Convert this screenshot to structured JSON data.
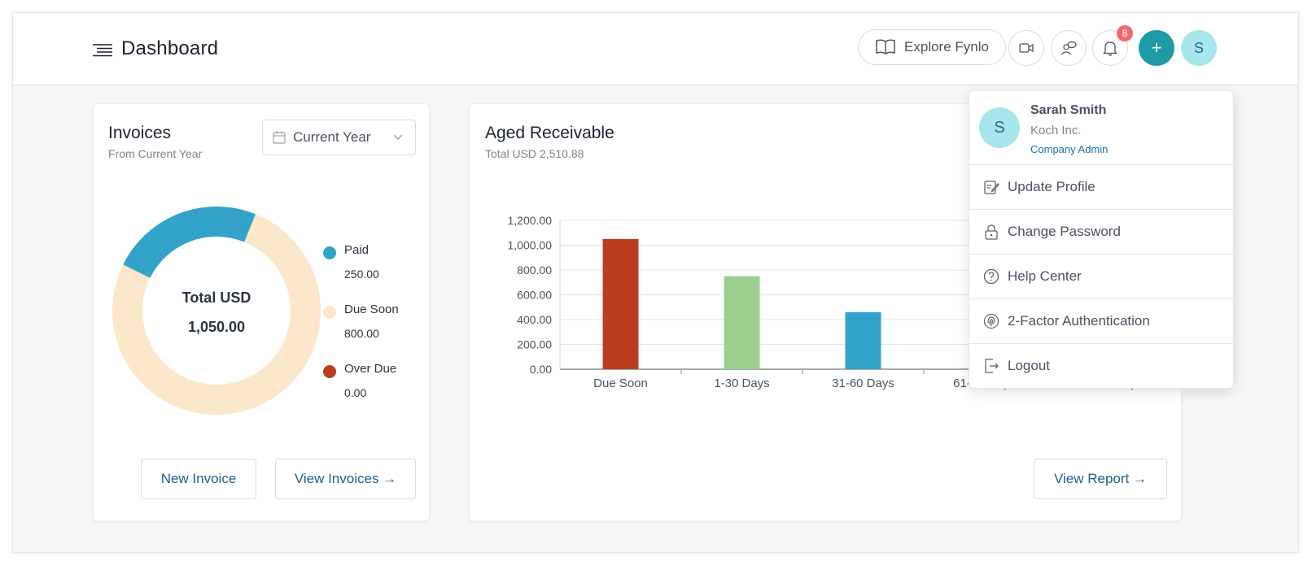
{
  "header": {
    "title": "Dashboard",
    "explore_label": "Explore Fynlo",
    "notification_count": "8",
    "avatar_initial": "S"
  },
  "invoices": {
    "title": "Invoices",
    "subtitle": "From Current Year",
    "period": "Current Year",
    "center_label": "Total USD",
    "center_value": "1,050.00",
    "legend": [
      {
        "label": "Paid",
        "value": "250.00",
        "color": "#33a3c9"
      },
      {
        "label": "Due Soon",
        "value": "800.00",
        "color": "#fbe7c9"
      },
      {
        "label": "Over Due",
        "value": "0.00",
        "color": "#bb3c1c"
      }
    ],
    "new_label": "New Invoice",
    "view_label": "View Invoices →"
  },
  "aged": {
    "title": "Aged Receivable",
    "subtitle": "Total USD 2,510.88",
    "view_label": "View Report →"
  },
  "chart_data": {
    "type": "bar",
    "categories": [
      "Due Soon",
      "1-30 Days",
      "31-60 Days",
      "61-90 Days",
      "Over 90 Days"
    ],
    "values": [
      1050,
      750,
      460,
      null,
      null
    ],
    "colors": [
      "#bb3c1c",
      "#9ccf8e",
      "#33a3c9"
    ],
    "ylim": [
      0,
      1200
    ],
    "yticks": [
      "0.00",
      "200.00",
      "400.00",
      "600.00",
      "800.00",
      "1,000.00",
      "1,200.00"
    ],
    "grid": true
  },
  "user_menu": {
    "initial": "S",
    "name": "Sarah Smith",
    "company": "Koch Inc.",
    "role": "Company Admin",
    "items": [
      {
        "label": "Update Profile",
        "icon": "edit-icon"
      },
      {
        "label": "Change Password",
        "icon": "lock-icon"
      },
      {
        "label": "Help Center",
        "icon": "help-icon"
      },
      {
        "label": "2-Factor Authentication",
        "icon": "fingerprint-icon"
      },
      {
        "label": "Logout",
        "icon": "logout-icon"
      }
    ]
  }
}
